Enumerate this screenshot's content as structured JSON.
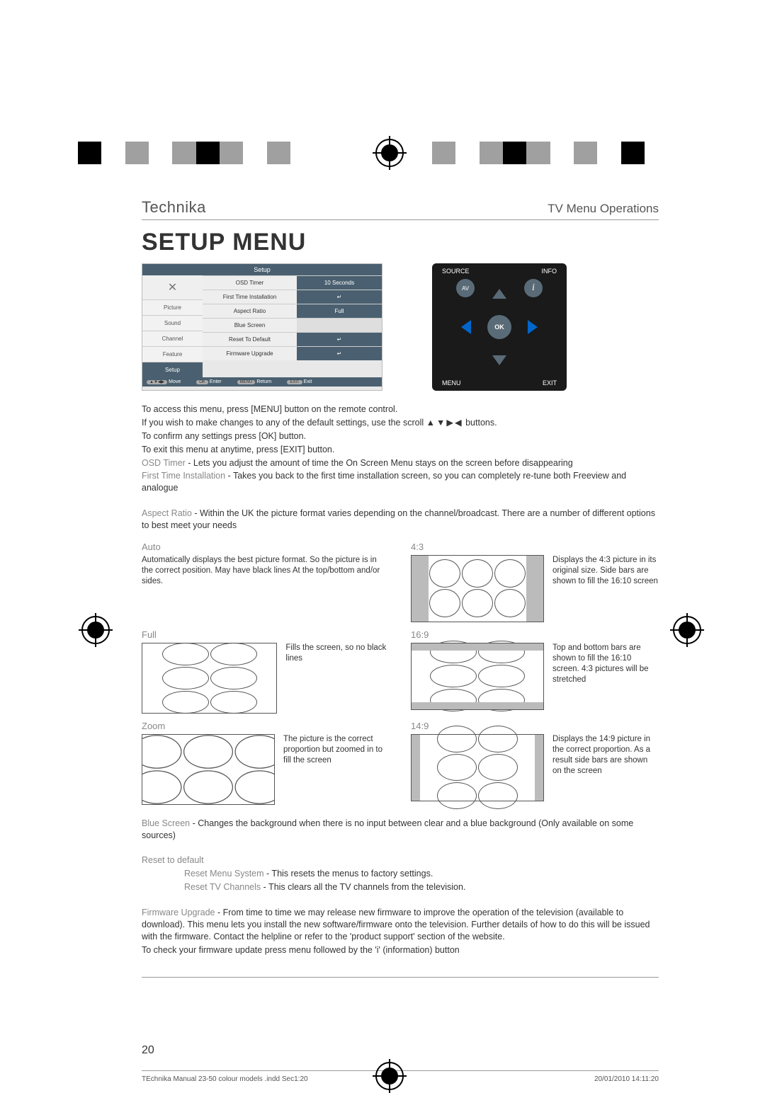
{
  "reg_colors_left": [
    "#000000",
    "#ffffff",
    "#a0a0a0",
    "#ffffff",
    "#a0a0a0",
    "#000000",
    "#a0a0a0",
    "#ffffff",
    "#a0a0a0"
  ],
  "reg_colors_right": [
    "#a0a0a0",
    "#ffffff",
    "#a0a0a0",
    "#000000",
    "#a0a0a0",
    "#ffffff",
    "#a0a0a0",
    "#ffffff",
    "#000000"
  ],
  "header": {
    "brand": "Technika",
    "section": "TV Menu Operations"
  },
  "title": "SETUP MENU",
  "osd": {
    "title": "Setup",
    "side_items": [
      "Picture",
      "Sound",
      "Channel",
      "Feature",
      "Setup"
    ],
    "rows": [
      {
        "k": "OSD Timer",
        "v": "10 Seconds",
        "style": "dark"
      },
      {
        "k": "First Time Installation",
        "v": "↵",
        "style": "dark"
      },
      {
        "k": "Aspect Ratio",
        "v": "Full",
        "style": "dark"
      },
      {
        "k": "Blue Screen",
        "v": "",
        "style": "light"
      },
      {
        "k": "Reset To Default",
        "v": "↵",
        "style": "dark"
      },
      {
        "k": "Firmware Upgrade",
        "v": "↵",
        "style": "dark"
      }
    ],
    "foot": [
      {
        "pill": "▲▼◀▶",
        "txt": "Move"
      },
      {
        "pill": "OK",
        "txt": "Enter"
      },
      {
        "pill": "MENU",
        "txt": "Return"
      },
      {
        "pill": "EXIT",
        "txt": "Exit"
      }
    ]
  },
  "remote": {
    "source": "SOURCE",
    "info": "INFO",
    "menu": "MENU",
    "exit": "EXIT",
    "av": "AV",
    "ok": "OK",
    "i": "i"
  },
  "intro": {
    "l1": "To access this menu, press [MENU] button on the remote control.",
    "l2a": "If you wish to make changes to any of the default settings, use the scroll ",
    "l2arrows": "▲▼▶◀",
    "l2b": " buttons.",
    "l3": "To confirm any settings press [OK] button.",
    "l4": "To exit this menu at anytime, press [EXIT] button.",
    "osd_label": "OSD Timer",
    "osd_txt": " - Lets you adjust the amount of time the On Screen Menu stays on the screen before disappearing",
    "fti_label": "First Time Installation",
    "fti_txt": " - Takes you back to the first time installation screen, so you can completely re-tune both Freeview and analogue",
    "ar_label": "Aspect Ratio",
    "ar_txt": " - Within the UK the picture format varies depending on the channel/broadcast. There are a number of different options to best meet your needs"
  },
  "aspects": {
    "auto": {
      "label": "Auto",
      "desc": "Automatically displays the best picture format. So the picture is in the correct position. May have black lines At the top/bottom and/or sides."
    },
    "r43": {
      "label": "4:3",
      "desc": "Displays the 4:3 picture in its original size. Side bars are shown to fill the 16:10 screen"
    },
    "full": {
      "label": "Full",
      "desc": "Fills the screen, so no black lines"
    },
    "r169": {
      "label": "16:9",
      "desc": "Top and bottom bars are shown to fill the 16:10 screen. 4:3 pictures will be stretched"
    },
    "zoom": {
      "label": "Zoom",
      "desc": "The picture is the correct proportion but zoomed in to fill the screen"
    },
    "r149": {
      "label": "14:9",
      "desc": "Displays the 14:9 picture in the correct proportion. As a result side bars are shown on the screen"
    }
  },
  "tail": {
    "blue_label": "Blue Screen",
    "blue_txt": " - Changes the background when there is no input between clear and a blue background (Only available on some sources)",
    "reset_label": "Reset to default",
    "reset_menu_label": "Reset Menu System",
    "reset_menu_txt": " - This resets the menus to factory settings.",
    "reset_tv_label": "Reset TV Channels",
    "reset_tv_txt": " - This clears all the TV channels from the television.",
    "fw_label": "Firmware Upgrade",
    "fw_txt": " - From time to time we may release new firmware to improve the operation of the television (available to download). This menu lets you install the new software/firmware onto the television. Further details of how to do this will be issued with the firmware. Contact the helpline or refer to the 'product support' section of the website.",
    "fw_txt2": "To check your firmware update press menu followed by the 'i' (information) button"
  },
  "page_number": "20",
  "footer": {
    "file": "TEchnika Manual 23-50 colour models .indd   Sec1:20",
    "date": "20/01/2010   14:11:20"
  }
}
